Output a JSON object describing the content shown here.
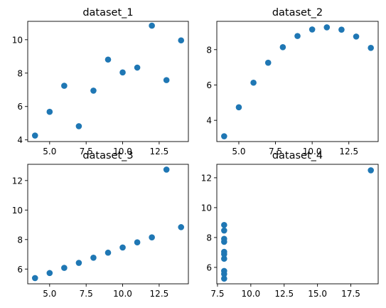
{
  "figure": {
    "background": "#ffffff"
  },
  "chart_data": [
    {
      "type": "scatter",
      "title": "dataset_1",
      "color": "#1f77b4",
      "xlim": [
        3.5,
        14.5
      ],
      "ylim": [
        3.9,
        11.1
      ],
      "xticks": [
        5.0,
        7.5,
        10.0,
        12.5
      ],
      "xtick_labels": [
        "5.0",
        "7.5",
        "10.0",
        "12.5"
      ],
      "yticks": [
        4,
        6,
        8,
        10
      ],
      "ytick_labels": [
        "4",
        "6",
        "8",
        "10"
      ],
      "x": [
        4,
        5,
        6,
        7,
        8,
        9,
        10,
        11,
        12,
        13,
        14
      ],
      "y": [
        4.26,
        5.68,
        7.24,
        4.82,
        6.95,
        8.81,
        8.04,
        8.33,
        10.84,
        7.58,
        9.96
      ],
      "grid": false
    },
    {
      "type": "scatter",
      "title": "dataset_2",
      "color": "#1f77b4",
      "xlim": [
        3.5,
        14.5
      ],
      "ylim": [
        2.8,
        9.6
      ],
      "xticks": [
        5.0,
        7.5,
        10.0,
        12.5
      ],
      "xtick_labels": [
        "5.0",
        "7.5",
        "10.0",
        "12.5"
      ],
      "yticks": [
        4,
        6,
        8
      ],
      "ytick_labels": [
        "4",
        "6",
        "8"
      ],
      "x": [
        4,
        5,
        6,
        7,
        8,
        9,
        10,
        11,
        12,
        13,
        14
      ],
      "y": [
        3.1,
        4.74,
        6.13,
        7.26,
        8.14,
        8.77,
        9.14,
        9.26,
        9.13,
        8.74,
        8.1
      ],
      "grid": false
    },
    {
      "type": "scatter",
      "title": "dataset_3",
      "color": "#1f77b4",
      "xlim": [
        3.5,
        14.5
      ],
      "ylim": [
        5.0,
        13.1
      ],
      "xticks": [
        5.0,
        7.5,
        10.0,
        12.5
      ],
      "xtick_labels": [
        "5.0",
        "7.5",
        "10.0",
        "12.5"
      ],
      "yticks": [
        6,
        8,
        10,
        12
      ],
      "ytick_labels": [
        "6",
        "8",
        "10",
        "12"
      ],
      "x": [
        4,
        5,
        6,
        7,
        8,
        9,
        10,
        11,
        12,
        13,
        14
      ],
      "y": [
        5.39,
        5.73,
        6.08,
        6.42,
        6.77,
        7.11,
        7.46,
        7.81,
        8.15,
        12.74,
        8.84
      ],
      "grid": false
    },
    {
      "type": "scatter",
      "title": "dataset_4",
      "color": "#1f77b4",
      "xlim": [
        7.45,
        19.55
      ],
      "ylim": [
        4.9,
        12.9
      ],
      "xticks": [
        7.5,
        10.0,
        12.5,
        15.0,
        17.5
      ],
      "xtick_labels": [
        "7.5",
        "10.0",
        "12.5",
        "15.0",
        "17.5"
      ],
      "yticks": [
        6,
        8,
        10,
        12
      ],
      "ytick_labels": [
        "6",
        "8",
        "10",
        "12"
      ],
      "x": [
        8,
        8,
        8,
        8,
        8,
        8,
        8,
        19,
        8,
        8,
        8
      ],
      "y": [
        6.58,
        5.76,
        7.71,
        8.84,
        8.47,
        7.04,
        5.25,
        12.5,
        5.56,
        7.91,
        6.89
      ],
      "grid": false
    }
  ]
}
